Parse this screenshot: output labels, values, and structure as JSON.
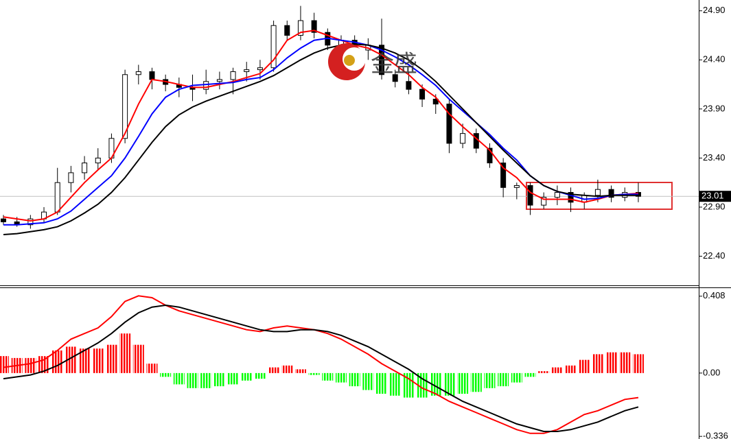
{
  "chart_data": [
    {
      "type": "candlestick",
      "watermark": "金盛",
      "up_color": "#ffffff",
      "down_color": "#000000",
      "open": [
        22.78,
        22.75,
        22.72,
        22.78,
        22.85,
        23.15,
        23.25,
        23.35,
        23.4,
        23.6,
        24.25,
        24.28,
        24.2,
        24.15,
        24.12,
        24.1,
        24.18,
        24.2,
        24.28,
        24.3,
        24.32,
        24.75,
        24.65,
        24.8,
        24.68,
        24.55,
        24.6,
        24.5,
        24.55,
        24.25,
        24.18,
        24.1,
        24.0,
        23.95,
        23.55,
        23.65,
        23.5,
        23.35,
        23.1,
        23.12,
        22.92,
        23.0,
        23.05,
        22.95,
        23.02,
        23.08,
        23.0,
        23.05
      ],
      "high": [
        22.82,
        22.8,
        22.82,
        22.9,
        23.3,
        23.32,
        23.42,
        23.5,
        23.65,
        24.3,
        24.35,
        24.32,
        24.25,
        24.22,
        24.25,
        24.3,
        24.28,
        24.32,
        24.38,
        24.4,
        24.8,
        24.8,
        24.95,
        24.88,
        24.72,
        24.65,
        24.65,
        24.62,
        24.82,
        24.3,
        24.28,
        24.15,
        24.05,
        24.0,
        23.75,
        23.7,
        23.55,
        23.4,
        23.15,
        23.15,
        23.05,
        23.12,
        23.1,
        23.05,
        23.18,
        23.12,
        23.1,
        23.15
      ],
      "low": [
        22.72,
        22.7,
        22.68,
        22.74,
        22.82,
        23.05,
        23.18,
        23.28,
        23.35,
        23.55,
        24.15,
        24.1,
        24.08,
        24.02,
        23.98,
        24.05,
        24.1,
        24.05,
        24.18,
        24.2,
        24.28,
        24.6,
        24.6,
        24.62,
        24.5,
        24.45,
        24.45,
        24.4,
        24.2,
        24.12,
        24.05,
        23.92,
        23.85,
        23.45,
        23.5,
        23.45,
        23.3,
        23.0,
        22.98,
        22.82,
        22.88,
        22.92,
        22.85,
        22.88,
        22.95,
        22.95,
        22.96,
        22.95
      ],
      "close": [
        22.75,
        22.72,
        22.78,
        22.85,
        23.15,
        23.25,
        23.35,
        23.4,
        23.6,
        24.25,
        24.28,
        24.2,
        24.15,
        24.12,
        24.1,
        24.18,
        24.2,
        24.28,
        24.3,
        24.32,
        24.75,
        24.65,
        24.8,
        24.68,
        24.55,
        24.6,
        24.5,
        24.55,
        24.25,
        24.18,
        24.1,
        24.0,
        23.95,
        23.55,
        23.65,
        23.5,
        23.35,
        23.1,
        23.12,
        22.92,
        23.0,
        23.05,
        22.95,
        23.02,
        23.08,
        23.0,
        23.05,
        23.01
      ],
      "overlays": [
        {
          "color": "#ff0000",
          "values": [
            22.8,
            22.78,
            22.76,
            22.78,
            22.85,
            23.0,
            23.15,
            23.28,
            23.4,
            23.65,
            23.95,
            24.2,
            24.18,
            24.15,
            24.12,
            24.12,
            24.15,
            24.18,
            24.22,
            24.26,
            24.4,
            24.6,
            24.68,
            24.7,
            24.65,
            24.6,
            24.55,
            24.52,
            24.45,
            24.35,
            24.25,
            24.12,
            24.02,
            23.85,
            23.72,
            23.6,
            23.48,
            23.3,
            23.2,
            23.05,
            22.98,
            22.98,
            22.98,
            22.95,
            22.98,
            23.02,
            23.03,
            23.04
          ]
        },
        {
          "color": "#0000ff",
          "values": [
            22.72,
            22.72,
            22.73,
            22.74,
            22.78,
            22.86,
            22.98,
            23.1,
            23.22,
            23.4,
            23.62,
            23.85,
            24.02,
            24.1,
            24.14,
            24.15,
            24.16,
            24.17,
            24.2,
            24.22,
            24.3,
            24.42,
            24.52,
            24.6,
            24.62,
            24.6,
            24.58,
            24.55,
            24.5,
            24.43,
            24.35,
            24.25,
            24.14,
            24.0,
            23.88,
            23.76,
            23.64,
            23.5,
            23.38,
            23.22,
            23.12,
            23.06,
            23.02,
            22.98,
            22.99,
            23.02,
            23.03,
            23.03
          ]
        },
        {
          "color": "#000000",
          "values": [
            22.62,
            22.63,
            22.65,
            22.67,
            22.7,
            22.76,
            22.84,
            22.93,
            23.05,
            23.2,
            23.38,
            23.56,
            23.72,
            23.84,
            23.92,
            23.98,
            24.03,
            24.08,
            24.13,
            24.18,
            24.24,
            24.32,
            24.4,
            24.47,
            24.52,
            24.55,
            24.56,
            24.55,
            24.52,
            24.47,
            24.4,
            24.3,
            24.18,
            24.04,
            23.9,
            23.76,
            23.62,
            23.48,
            23.35,
            23.22,
            23.12,
            23.06,
            23.03,
            23.02,
            23.01,
            23.02,
            23.02,
            23.02
          ]
        }
      ],
      "last_price": 23.01,
      "ylim": [
        22.11,
        25.01
      ],
      "yticks": [
        {
          "value": 22.4,
          "label": "22.40"
        },
        {
          "value": 22.9,
          "label": "22.90"
        },
        {
          "value": 23.4,
          "label": "23.40"
        },
        {
          "value": 23.9,
          "label": "23.90"
        },
        {
          "value": 24.4,
          "label": "24.40"
        },
        {
          "value": 24.9,
          "label": "24.90"
        }
      ]
    },
    {
      "type": "macd",
      "up_color": "#ff0000",
      "down_color": "#00ff00",
      "histogram": [
        0.09,
        0.08,
        0.08,
        0.09,
        0.12,
        0.14,
        0.13,
        0.13,
        0.15,
        0.21,
        0.15,
        0.05,
        -0.02,
        -0.06,
        -0.08,
        -0.08,
        -0.07,
        -0.06,
        -0.04,
        -0.03,
        0.03,
        0.04,
        0.02,
        -0.01,
        -0.04,
        -0.05,
        -0.07,
        -0.09,
        -0.11,
        -0.12,
        -0.13,
        -0.13,
        -0.12,
        -0.12,
        -0.11,
        -0.1,
        -0.08,
        -0.07,
        -0.05,
        -0.02,
        0.01,
        0.03,
        0.04,
        0.07,
        0.1,
        0.11,
        0.11,
        0.1
      ],
      "lines": [
        {
          "color": "#ff0000",
          "values": [
            0.03,
            0.04,
            0.05,
            0.07,
            0.12,
            0.18,
            0.21,
            0.24,
            0.3,
            0.38,
            0.41,
            0.4,
            0.36,
            0.33,
            0.31,
            0.29,
            0.27,
            0.25,
            0.23,
            0.22,
            0.24,
            0.25,
            0.24,
            0.23,
            0.21,
            0.18,
            0.14,
            0.1,
            0.05,
            0.01,
            -0.03,
            -0.08,
            -0.11,
            -0.15,
            -0.18,
            -0.21,
            -0.24,
            -0.27,
            -0.3,
            -0.32,
            -0.32,
            -0.3,
            -0.26,
            -0.22,
            -0.2,
            -0.17,
            -0.14,
            -0.13
          ]
        },
        {
          "color": "#000000",
          "values": [
            -0.03,
            -0.02,
            -0.01,
            0.01,
            0.04,
            0.08,
            0.12,
            0.16,
            0.21,
            0.27,
            0.32,
            0.35,
            0.36,
            0.35,
            0.33,
            0.31,
            0.29,
            0.27,
            0.25,
            0.23,
            0.22,
            0.22,
            0.23,
            0.23,
            0.22,
            0.2,
            0.17,
            0.14,
            0.1,
            0.06,
            0.02,
            -0.03,
            -0.07,
            -0.11,
            -0.15,
            -0.18,
            -0.21,
            -0.24,
            -0.27,
            -0.29,
            -0.31,
            -0.31,
            -0.3,
            -0.28,
            -0.26,
            -0.23,
            -0.2,
            -0.18
          ]
        }
      ],
      "ylim": [
        -0.35,
        0.451
      ],
      "yticks": [
        -0.336,
        {
          "value": 0,
          "label": "0.00"
        },
        0.408
      ]
    }
  ]
}
